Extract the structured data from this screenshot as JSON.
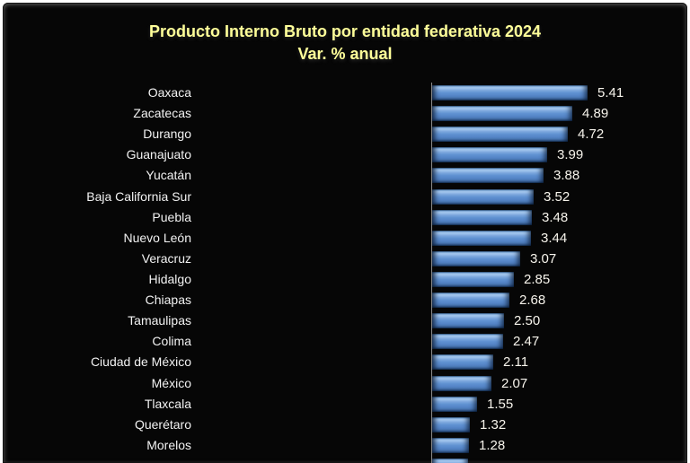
{
  "title": {
    "line1": "Producto Interno Bruto por entidad federativa 2024",
    "line2": "Var. % anual"
  },
  "chart_data": {
    "type": "bar",
    "orientation": "horizontal",
    "title": "Producto Interno Bruto por entidad federativa 2024",
    "subtitle": "Var. % anual",
    "xlabel": "",
    "ylabel": "",
    "grid": false,
    "legend": false,
    "sort_order": "descending",
    "baseline": 0,
    "categories": [
      "Oaxaca",
      "Zacatecas",
      "Durango",
      "Guanajuato",
      "Yucatán",
      "Baja California Sur",
      "Puebla",
      "Nuevo León",
      "Veracruz",
      "Hidalgo",
      "Chiapas",
      "Tamaulipas",
      "Colima",
      "Ciudad de México",
      "México",
      "Tlaxcala",
      "Querétaro",
      "Morelos"
    ],
    "values": [
      5.41,
      4.89,
      4.72,
      3.99,
      3.88,
      3.52,
      3.48,
      3.44,
      3.07,
      2.85,
      2.68,
      2.5,
      2.47,
      2.11,
      2.07,
      1.55,
      1.32,
      1.28
    ],
    "value_labels": [
      "5.41",
      "4.89",
      "4.72",
      "3.99",
      "3.88",
      "3.52",
      "3.48",
      "3.44",
      "3.07",
      "2.85",
      "2.68",
      "2.50",
      "2.47",
      "2.11",
      "2.07",
      "1.55",
      "1.32",
      "1.28"
    ],
    "partial_bottom_bar": {
      "clipped": true,
      "estimated_value": 1.25,
      "label_visible": false,
      "value_visible": false
    }
  },
  "colors": {
    "background": "#060606",
    "title_text": "#FFFF99",
    "category_label_text": "#F2F2F2",
    "value_label_text": "#F7F4EC",
    "bar_main": "#5B8FD0",
    "bar_highlight": "#AACDF3",
    "bar_dark": "#1A3557",
    "axis_line": "#8C8C8C",
    "outer_border": "#FFFFFF"
  }
}
